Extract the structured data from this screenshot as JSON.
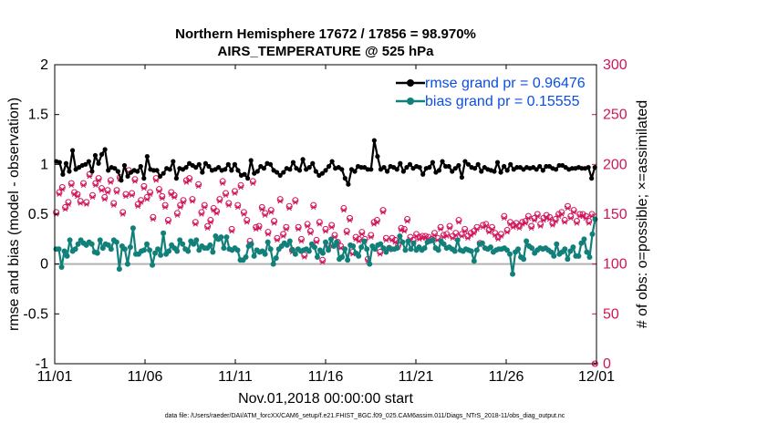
{
  "colors": {
    "rmse": "#000000",
    "bias": "#11807a",
    "obs": "#d1145a",
    "legend_text": "#0c4fe0",
    "zero_line": "#b3b3b3"
  },
  "chart_data": {
    "type": "line",
    "title": "Northern Hemisphere 17672 / 17856 = 98.970%",
    "subtitle": "AIRS_TEMPERATURE @ 525 hPa",
    "xlabel": "Nov.01,2018 00:00:00 start",
    "ylabel": "rmse and bias (model - observation)",
    "y2label": "# of obs: o=possible; ×=assimilated",
    "footer": "data file: /Users/raeder/DAI/ATM_forcXX/CAM6_setup/f.e21.FHIST_BGC.f09_025.CAM6assim.011/Diags_NTrS_2018-11/obs_diag_output.nc",
    "xlim": [
      0,
      30
    ],
    "ylim": [
      -1,
      2
    ],
    "y2lim": [
      0,
      300
    ],
    "x_ticks": [
      0,
      5,
      10,
      15,
      20,
      25,
      30
    ],
    "x_tick_labels": [
      "11/01",
      "11/06",
      "11/11",
      "11/16",
      "11/21",
      "11/26",
      "12/01"
    ],
    "y_ticks": [
      -1,
      -0.5,
      0,
      0.5,
      1,
      1.5,
      2
    ],
    "y_tick_labels": [
      "-1",
      "-0.5",
      "0",
      "0.5",
      "1",
      "1.5",
      "2"
    ],
    "y2_ticks": [
      0,
      50,
      100,
      150,
      200,
      250,
      300
    ],
    "y2_tick_labels": [
      "0",
      "50",
      "100",
      "150",
      "200",
      "250",
      "300"
    ],
    "legend": {
      "position": "top-right",
      "entries": [
        "rmse grand pr = 0.96476",
        "bias grand pr = 0.15555"
      ]
    },
    "series": [
      {
        "name": "rmse",
        "values": [
          1.03,
          1.02,
          0.9,
          1.01,
          0.93,
          1.14,
          0.95,
          0.97,
          0.99,
          1.0,
          1.03,
          0.93,
          1.09,
          1.01,
          1.1,
          1.15,
          0.94,
          0.97,
          0.96,
          0.93,
          0.84,
          0.99,
          0.88,
          0.92,
          0.94,
          0.93,
          0.98,
          0.86,
          1.08,
          0.95,
          0.94,
          0.94,
          0.88,
          0.91,
          0.96,
          0.95,
          1.03,
          0.86,
          0.96,
          0.95,
          0.97,
          1.01,
          0.99,
          0.97,
          1.0,
          0.92,
          1.01,
          0.98,
          0.94,
          0.95,
          0.97,
          0.94,
          0.95,
          1.0,
          0.94,
          1.0,
          0.94,
          0.89,
          0.9,
          0.86,
          1.04,
          0.91,
          0.93,
          0.98,
          0.96,
          1.01,
          1.0,
          0.94,
          0.92,
          0.89,
          0.92,
          0.96,
          0.95,
          1.02,
          0.96,
          0.94,
          1.05,
          0.95,
          0.97,
          1.01,
          0.93,
          0.89,
          0.91,
          0.94,
          0.98,
          1.03,
          0.96,
          0.97,
          0.95,
          0.86,
          0.8,
          0.95,
          0.93,
          0.98,
          0.97,
          0.97,
          0.95,
          0.95,
          1.24,
          1.08,
          0.95,
          0.97,
          0.93,
          0.98,
          0.97,
          0.95,
          1.01,
          0.93,
          0.97,
          1.0,
          0.96,
          0.98,
          0.97,
          0.9,
          0.96,
          0.97,
          1.02,
          0.92,
          0.94,
          1.03,
          0.98,
          0.98,
          0.93,
          0.96,
          0.99,
          0.87,
          1.03,
          1.0,
          0.97,
          0.96,
          1.0,
          0.93,
          0.97,
          0.95,
          0.94,
          0.93,
          1.02,
          0.92,
          0.98,
          0.94,
          1.0,
          0.95,
          0.97,
          0.97,
          0.95,
          0.97,
          0.96,
          0.97,
          0.95,
          0.98,
          0.94,
          0.98,
          0.98,
          0.96,
          0.95,
          0.99,
          0.99,
          0.97,
          0.95,
          0.96,
          0.96,
          0.97,
          0.96,
          0.96,
          0.97,
          0.86,
          0.97
        ]
      },
      {
        "name": "bias",
        "values": [
          0.15,
          0.15,
          -0.03,
          0.13,
          0.08,
          0.24,
          0.13,
          0.15,
          0.2,
          0.24,
          0.21,
          0.19,
          0.22,
          0.2,
          0.12,
          0.11,
          0.24,
          0.16,
          0.2,
          0.19,
          0.15,
          0.24,
          0.22,
          -0.05,
          0.18,
          0.15,
          0.0,
          0.17,
          0.36,
          0.1,
          0.1,
          0.13,
          0.14,
          0.2,
          0.14,
          -0.01,
          0.11,
          0.15,
          0.09,
          0.31,
          0.1,
          0.13,
          0.19,
          0.16,
          0.13,
          0.24,
          0.2,
          0.15,
          0.13,
          0.23,
          0.2,
          0.24,
          0.14,
          0.18,
          0.16,
          0.16,
          0.19,
          0.12,
          0.28,
          0.25,
          0.27,
          0.16,
          0.27,
          0.15,
          0.14,
          0.16,
          0.14,
          0.04,
          0.04,
          0.07,
          0.18,
          0.2,
          0.08,
          0.14,
          0.12,
          0.13,
          0.1,
          0.22,
          0.15,
          0.0,
          0.06,
          0.15,
          0.18,
          0.21,
          0.19,
          0.23,
          0.14,
          0.1,
          0.15,
          0.13,
          0.14,
          0.15,
          0.13,
          0.2,
          0.17,
          0.07,
          0.14,
          0.11,
          0.22,
          0.14,
          0.25,
          0.18,
          0.22,
          0.05,
          0.07,
          0.15,
          0.04,
          0.19,
          0.18,
          0.11,
          0.08,
          0.17,
          0.23,
          0.15,
          0.0,
          0.18,
          0.15,
          0.19,
          0.2,
          0.16,
          0.12,
          0.16,
          0.15,
          0.15,
          0.16,
          0.28,
          0.22,
          0.14,
          0.23,
          0.15,
          0.21,
          0.14,
          0.17,
          0.14,
          0.16,
          0.22,
          0.23,
          0.24,
          0.16,
          0.14,
          0.23,
          0.2,
          0.16,
          0.17,
          0.15,
          0.13,
          0.24,
          0.14,
          0.13,
          0.15,
          0.14,
          0.13,
          0.03,
          0.14,
          0.2,
          0.21,
          0.16,
          0.15,
          0.17,
          0.12,
          0.14,
          0.15,
          0.15,
          0.16,
          0.14,
          0.1,
          -0.1,
          0.12,
          0.15,
          0.07,
          0.05,
          0.23,
          0.18,
          0.16,
          0.11,
          0.14,
          0.16,
          0.15,
          0.16,
          0.14,
          0.12,
          0.08,
          0.2,
          0.1,
          0.12,
          0.15,
          0.05,
          0.13,
          0.17,
          0.08,
          0.08,
          0.21,
          0.25,
          0.12,
          0.07,
          0.3,
          0.45
        ]
      }
    ],
    "obs_possible": [
      152,
      172,
      177,
      157,
      162,
      181,
      172,
      170,
      163,
      181,
      162,
      190,
      169,
      181,
      186,
      176,
      167,
      174,
      184,
      161,
      174,
      187,
      152,
      170,
      194,
      171,
      185,
      160,
      164,
      178,
      167,
      172,
      147,
      186,
      175,
      168,
      159,
      144,
      172,
      169,
      151,
      159,
      164,
      184,
      186,
      165,
      142,
      180,
      152,
      159,
      138,
      144,
      156,
      153,
      165,
      183,
      171,
      161,
      135,
      173,
      159,
      179,
      152,
      144,
      123,
      183,
      137,
      138,
      157,
      151,
      132,
      154,
      143,
      126,
      165,
      130,
      137,
      158,
      114,
      164,
      137,
      125,
      109,
      140,
      133,
      159,
      124,
      142,
      104,
      135,
      118,
      139,
      129,
      122,
      118,
      156,
      133,
      146,
      112,
      127,
      125,
      132,
      125,
      105,
      129,
      142,
      144,
      112,
      154,
      126,
      116,
      126,
      124,
      119,
      136,
      135,
      145,
      127,
      124,
      130,
      127,
      128,
      128,
      127,
      125,
      131,
      126,
      137,
      129,
      130,
      138,
      128,
      131,
      144,
      130,
      135,
      128,
      131,
      133,
      137,
      121,
      139,
      140,
      134,
      137,
      131,
      127,
      130,
      148,
      134,
      142,
      139,
      141,
      138,
      142,
      143,
      148,
      138,
      146,
      150,
      140,
      146,
      149,
      147,
      141,
      145,
      150,
      152,
      144,
      158,
      148,
      154,
      143,
      150,
      150,
      148,
      143,
      150,
      0
    ],
    "obs_assimilated": [
      150,
      170,
      175,
      155,
      160,
      179,
      170,
      168,
      161,
      179,
      160,
      188,
      167,
      179,
      184,
      174,
      165,
      172,
      182,
      159,
      172,
      185,
      150,
      168,
      192,
      169,
      183,
      158,
      162,
      176,
      165,
      170,
      145,
      184,
      173,
      166,
      157,
      142,
      170,
      167,
      149,
      157,
      162,
      182,
      184,
      163,
      140,
      178,
      150,
      157,
      136,
      142,
      154,
      151,
      163,
      181,
      169,
      159,
      133,
      171,
      157,
      177,
      150,
      142,
      121,
      181,
      135,
      136,
      155,
      149,
      130,
      152,
      141,
      124,
      163,
      128,
      135,
      156,
      112,
      162,
      135,
      123,
      107,
      138,
      131,
      157,
      122,
      140,
      102,
      133,
      116,
      137,
      127,
      120,
      116,
      154,
      131,
      144,
      110,
      125,
      123,
      130,
      123,
      103,
      127,
      140,
      142,
      110,
      152,
      124,
      114,
      124,
      122,
      117,
      134,
      133,
      143,
      125,
      122,
      128,
      125,
      126,
      126,
      125,
      123,
      129,
      124,
      135,
      127,
      128,
      136,
      126,
      129,
      142,
      128,
      133,
      126,
      129,
      131,
      135,
      119,
      137,
      138,
      132,
      135,
      129,
      125,
      128,
      146,
      132,
      140,
      137,
      139,
      136,
      140,
      141,
      146,
      136,
      144,
      148,
      138,
      144,
      147,
      145,
      139,
      143,
      148,
      150,
      142,
      156,
      146,
      152,
      141,
      148,
      148,
      146,
      141,
      148,
      0
    ]
  }
}
